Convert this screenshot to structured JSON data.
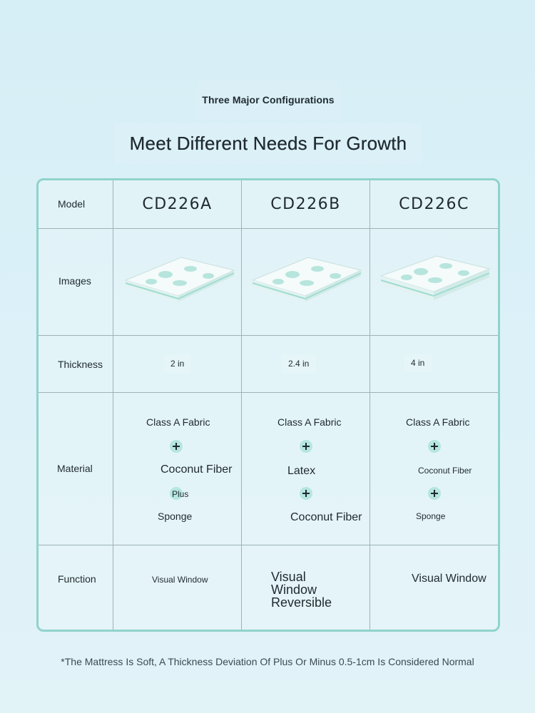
{
  "header": {
    "subtitle": "Three Major Configurations",
    "title": "Meet Different Needs For Growth"
  },
  "table": {
    "row_labels": {
      "model": "Model",
      "images": "Images",
      "thickness": "Thickness",
      "material": "Material",
      "function": "Function"
    },
    "columns": [
      {
        "model": "CD226A",
        "thickness": "2 in",
        "material": {
          "line1": "Class A Fabric",
          "line2": "Coconut Fiber",
          "connector2": "Plus",
          "line3": "Sponge"
        },
        "function": "Visual Window"
      },
      {
        "model": "CD226B",
        "thickness": "2.4 in",
        "material": {
          "line1": "Class A Fabric",
          "line2": "Latex",
          "line3": "Coconut Fiber"
        },
        "function_lines": [
          "Visual",
          "Window",
          "Reversible"
        ]
      },
      {
        "model": "CD226C",
        "thickness": "4 in",
        "material": {
          "line1": "Class A Fabric",
          "line2": "Coconut Fiber",
          "line3": "Sponge"
        },
        "function": "Visual Window"
      }
    ]
  },
  "footnote": "*The Mattress Is Soft, A Thickness Deviation Of Plus Or Minus 0.5-1cm Is Considered Normal",
  "colors": {
    "background": "#d6eef6",
    "table_border": "#8fd3cc",
    "grid_line": "#9fb2b6",
    "plus_badge": "#b5e6df",
    "mattress_accent": "#9fdcd2"
  },
  "icons": {
    "plus": "plus-icon",
    "mattress": "mattress-image"
  }
}
